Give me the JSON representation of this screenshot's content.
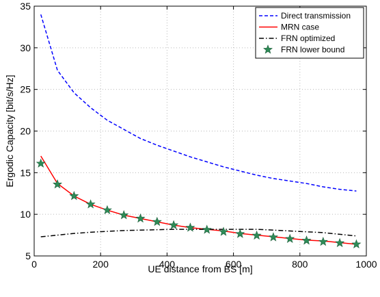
{
  "chart_data": {
    "type": "line",
    "title": "",
    "xlabel": "UE distance from BS [m]",
    "ylabel": "Ergodic Capacity  [bit/s/Hz]",
    "xlim": [
      0,
      1000
    ],
    "ylim": [
      5,
      35
    ],
    "xticks": [
      0,
      200,
      400,
      600,
      800,
      1000
    ],
    "yticks": [
      5,
      10,
      15,
      20,
      25,
      30,
      35
    ],
    "xtick_labels": [
      "0",
      "200",
      "400",
      "600",
      "800",
      "1000"
    ],
    "ytick_labels": [
      "5",
      "10",
      "15",
      "20",
      "25",
      "30",
      "35"
    ],
    "grid": true,
    "legend_position": "top-right",
    "series": [
      {
        "name": "Direct transmission",
        "style": "dashed",
        "color": "#0000ff",
        "x": [
          20,
          70,
          120,
          170,
          220,
          270,
          320,
          370,
          420,
          470,
          520,
          570,
          620,
          670,
          720,
          770,
          820,
          870,
          920,
          970
        ],
        "y": [
          34.0,
          27.3,
          24.6,
          22.8,
          21.3,
          20.2,
          19.1,
          18.3,
          17.6,
          16.9,
          16.3,
          15.7,
          15.2,
          14.7,
          14.3,
          14.0,
          13.7,
          13.3,
          13.0,
          12.8
        ]
      },
      {
        "name": "MRN case",
        "style": "solid",
        "color": "#ff0000",
        "x": [
          20,
          70,
          120,
          170,
          220,
          270,
          320,
          370,
          420,
          470,
          520,
          570,
          620,
          670,
          720,
          770,
          820,
          870,
          920,
          970
        ],
        "y": [
          17.0,
          13.7,
          12.2,
          11.2,
          10.5,
          9.9,
          9.5,
          9.1,
          8.7,
          8.4,
          8.2,
          8.0,
          7.7,
          7.5,
          7.3,
          7.1,
          6.9,
          6.8,
          6.6,
          6.4
        ]
      },
      {
        "name": "FRN optimized",
        "style": "dashdot",
        "color": "#000000",
        "x": [
          20,
          70,
          120,
          170,
          220,
          270,
          320,
          370,
          420,
          470,
          520,
          570,
          620,
          670,
          720,
          770,
          820,
          870,
          920,
          970
        ],
        "y": [
          7.3,
          7.5,
          7.7,
          7.85,
          7.95,
          8.05,
          8.1,
          8.15,
          8.2,
          8.2,
          8.2,
          8.2,
          8.2,
          8.2,
          8.1,
          8.0,
          7.9,
          7.8,
          7.6,
          7.4
        ]
      },
      {
        "name": "FRN lower bound",
        "style": "markers",
        "marker": "star",
        "color": "#2e8b57",
        "x": [
          20,
          70,
          120,
          170,
          220,
          270,
          320,
          370,
          420,
          470,
          520,
          570,
          620,
          670,
          720,
          770,
          820,
          870,
          920,
          970
        ],
        "y": [
          16.1,
          13.6,
          12.2,
          11.2,
          10.5,
          9.9,
          9.5,
          9.1,
          8.7,
          8.4,
          8.15,
          7.9,
          7.65,
          7.45,
          7.25,
          7.05,
          6.85,
          6.7,
          6.55,
          6.4
        ]
      }
    ]
  }
}
